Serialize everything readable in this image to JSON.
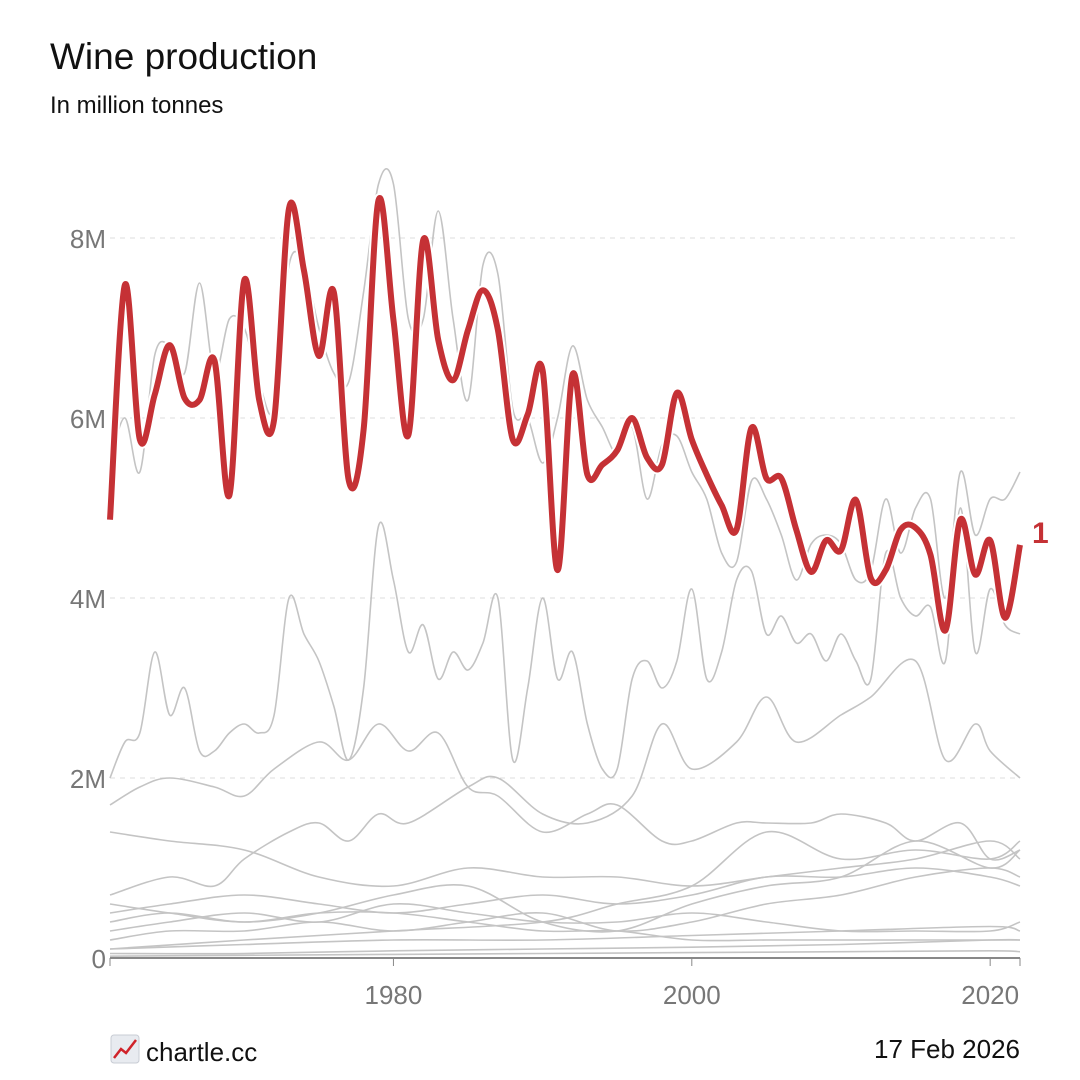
{
  "title": "Wine production",
  "subtitle": "In million tonnes",
  "footer": {
    "source": "chartle.cc",
    "date": "17 Feb 2026",
    "icon": "chart-increasing-icon"
  },
  "colors": {
    "highlight": "#c53135",
    "others": "#c4c4c4",
    "grid": "#dddddd",
    "axis": "#888888"
  },
  "chart_data": {
    "type": "line",
    "title": "Wine production",
    "subtitle": "In million tonnes",
    "xlabel": "",
    "ylabel": "",
    "xlim": [
      1961,
      2022
    ],
    "ylim": [
      0,
      8.8
    ],
    "x_ticks": [
      {
        "value": 1980,
        "label": "1980"
      },
      {
        "value": 2000,
        "label": "2000"
      },
      {
        "value": 2020,
        "label": "2020"
      }
    ],
    "y_ticks": [
      {
        "value": 0,
        "label": "0"
      },
      {
        "value": 2,
        "label": "2M"
      },
      {
        "value": 4,
        "label": "4M"
      },
      {
        "value": 6,
        "label": "6M"
      },
      {
        "value": 8,
        "label": "8M"
      }
    ],
    "grid": "horizontal dashed",
    "highlight": {
      "label": "1",
      "x": [
        1961,
        1962,
        1963,
        1964,
        1965,
        1966,
        1967,
        1968,
        1969,
        1970,
        1971,
        1972,
        1973,
        1974,
        1975,
        1976,
        1977,
        1978,
        1979,
        1980,
        1981,
        1982,
        1983,
        1984,
        1985,
        1986,
        1987,
        1988,
        1989,
        1990,
        1991,
        1992,
        1993,
        1994,
        1995,
        1996,
        1997,
        1998,
        1999,
        2000,
        2001,
        2002,
        2003,
        2004,
        2005,
        2006,
        2007,
        2008,
        2009,
        2010,
        2011,
        2012,
        2013,
        2014,
        2015,
        2016,
        2017,
        2018,
        2019,
        2020,
        2021,
        2022
      ],
      "values": [
        4.87,
        7.48,
        5.76,
        6.26,
        6.81,
        6.22,
        6.2,
        6.64,
        5.14,
        7.53,
        6.2,
        5.98,
        8.33,
        7.64,
        6.69,
        7.4,
        5.31,
        5.87,
        8.42,
        7.09,
        5.81,
        7.98,
        6.87,
        6.42,
        6.98,
        7.42,
        6.98,
        5.76,
        6.04,
        6.53,
        4.31,
        6.48,
        5.37,
        5.48,
        5.64,
        6.0,
        5.56,
        5.48,
        6.28,
        5.76,
        5.37,
        5.03,
        4.76,
        5.89,
        5.33,
        5.33,
        4.76,
        4.29,
        4.64,
        4.53,
        5.09,
        4.22,
        4.31,
        4.76,
        4.78,
        4.48,
        3.64,
        4.87,
        4.26,
        4.64,
        3.78,
        4.59
      ]
    },
    "series": [
      {
        "x": [
          1961,
          1962,
          1963,
          1964,
          1965,
          1966,
          1967,
          1968,
          1969,
          1970,
          1971,
          1972,
          1973,
          1974,
          1975,
          1976,
          1977,
          1978,
          1979,
          1980,
          1981,
          1982,
          1983,
          1984,
          1985,
          1986,
          1987,
          1988,
          1989,
          1990,
          1991,
          1992,
          1993,
          1994,
          1995,
          1996,
          1997,
          1998,
          1999,
          2000,
          2001,
          2002,
          2003,
          2004,
          2005,
          2006,
          2007,
          2008,
          2009,
          2010,
          2011,
          2012,
          2013,
          2014,
          2015,
          2016,
          2017,
          2018,
          2019,
          2020,
          2021,
          2022
        ],
        "values": [
          5.5,
          6.0,
          5.4,
          6.7,
          6.8,
          6.5,
          7.5,
          6.5,
          7.1,
          7.0,
          6.4,
          6.1,
          7.7,
          7.7,
          7.0,
          6.5,
          6.4,
          7.4,
          8.6,
          8.6,
          7.1,
          7.1,
          8.3,
          7.1,
          6.2,
          7.7,
          7.6,
          6.1,
          6.0,
          5.5,
          6.0,
          6.8,
          6.2,
          5.9,
          5.6,
          5.9,
          5.1,
          5.7,
          5.8,
          5.4,
          5.1,
          4.5,
          4.4,
          5.3,
          5.1,
          4.7,
          4.2,
          4.6,
          4.7,
          4.6,
          4.2,
          4.3,
          5.1,
          4.5,
          5.0,
          5.1,
          4.0,
          5.4,
          4.7,
          5.1,
          5.1,
          5.4
        ]
      },
      {
        "x": [
          1961,
          1962,
          1963,
          1964,
          1965,
          1966,
          1967,
          1968,
          1969,
          1970,
          1971,
          1972,
          1973,
          1974,
          1975,
          1976,
          1977,
          1978,
          1979,
          1980,
          1981,
          1982,
          1983,
          1984,
          1985,
          1986,
          1987,
          1988,
          1989,
          1990,
          1991,
          1992,
          1993,
          1994,
          1995,
          1996,
          1997,
          1998,
          1999,
          2000,
          2001,
          2002,
          2003,
          2004,
          2005,
          2006,
          2007,
          2008,
          2009,
          2010,
          2011,
          2012,
          2013,
          2014,
          2015,
          2016,
          2017,
          2018,
          2019,
          2020,
          2021,
          2022
        ],
        "values": [
          2.0,
          2.4,
          2.5,
          3.4,
          2.7,
          3.0,
          2.3,
          2.3,
          2.5,
          2.6,
          2.5,
          2.7,
          4.0,
          3.6,
          3.3,
          2.8,
          2.2,
          3.0,
          4.8,
          4.2,
          3.4,
          3.7,
          3.1,
          3.4,
          3.2,
          3.5,
          4.0,
          2.2,
          3.0,
          4.0,
          3.1,
          3.4,
          2.6,
          2.1,
          2.1,
          3.1,
          3.3,
          3.0,
          3.3,
          4.1,
          3.1,
          3.4,
          4.2,
          4.3,
          3.6,
          3.8,
          3.5,
          3.6,
          3.3,
          3.6,
          3.3,
          3.1,
          4.5,
          4.0,
          3.8,
          3.9,
          3.3,
          5.0,
          3.4,
          4.1,
          3.7,
          3.6
        ]
      },
      {
        "x": [
          1961,
          1965,
          1968,
          1970,
          1973,
          1975,
          1977,
          1979,
          1981,
          1985,
          1987,
          1990,
          1993,
          1996,
          1998,
          2000,
          2003,
          2005,
          2007,
          2010,
          2012,
          2015,
          2017,
          2019,
          2020,
          2022
        ],
        "values": [
          0.7,
          0.9,
          0.8,
          1.1,
          1.4,
          1.5,
          1.3,
          1.6,
          1.5,
          1.9,
          2.0,
          1.6,
          1.5,
          1.8,
          2.6,
          2.1,
          2.4,
          2.9,
          2.4,
          2.7,
          2.9,
          3.3,
          2.2,
          2.6,
          2.3,
          2.0
        ]
      },
      {
        "x": [
          1961,
          1963,
          1965,
          1968,
          1970,
          1972,
          1975,
          1977,
          1979,
          1981,
          1983,
          1985,
          1987,
          1990,
          1993,
          1995,
          1998,
          2000,
          2003,
          2005,
          2008,
          2010,
          2013,
          2015,
          2018,
          2020,
          2022
        ],
        "values": [
          1.7,
          1.9,
          2.0,
          1.9,
          1.8,
          2.1,
          2.4,
          2.2,
          2.6,
          2.3,
          2.5,
          1.9,
          1.8,
          1.4,
          1.6,
          1.7,
          1.3,
          1.3,
          1.5,
          1.5,
          1.5,
          1.6,
          1.5,
          1.3,
          1.5,
          1.1,
          1.2
        ]
      },
      {
        "x": [
          1961,
          1970,
          1980,
          1990,
          1995,
          2000,
          2005,
          2010,
          2015,
          2020,
          2022
        ],
        "values": [
          0.1,
          0.2,
          0.3,
          0.4,
          0.6,
          0.8,
          1.4,
          1.1,
          1.2,
          1.1,
          1.3
        ]
      },
      {
        "x": [
          1961,
          1965,
          1970,
          1975,
          1980,
          1985,
          1990,
          1995,
          2000,
          2005,
          2010,
          2015,
          2020,
          2022
        ],
        "values": [
          1.4,
          1.3,
          1.2,
          0.9,
          0.8,
          1.0,
          0.9,
          0.9,
          0.8,
          0.9,
          1.0,
          1.1,
          1.3,
          1.1
        ]
      },
      {
        "x": [
          1961,
          1965,
          1970,
          1975,
          1980,
          1985,
          1990,
          1995,
          2000,
          2005,
          2010,
          2015,
          2020,
          2022
        ],
        "values": [
          0.4,
          0.5,
          0.4,
          0.5,
          0.7,
          0.8,
          0.4,
          0.3,
          0.6,
          0.8,
          0.9,
          1.3,
          1.0,
          1.2
        ]
      },
      {
        "x": [
          1961,
          1965,
          1970,
          1975,
          1980,
          1985,
          1990,
          1995,
          2000,
          2005,
          2010,
          2015,
          2020,
          2022
        ],
        "values": [
          0.5,
          0.6,
          0.7,
          0.6,
          0.5,
          0.6,
          0.7,
          0.6,
          0.7,
          0.9,
          0.9,
          1.0,
          0.9,
          0.8
        ]
      },
      {
        "x": [
          1961,
          1965,
          1970,
          1975,
          1980,
          1985,
          1990,
          1995,
          2000,
          2005,
          2010,
          2015,
          2020,
          2022
        ],
        "values": [
          0.3,
          0.4,
          0.5,
          0.4,
          0.6,
          0.5,
          0.4,
          0.4,
          0.5,
          0.4,
          0.3,
          0.3,
          0.3,
          0.4
        ]
      },
      {
        "x": [
          1961,
          1965,
          1970,
          1975,
          1980,
          1985,
          1990,
          1995,
          2000,
          2005,
          2010,
          2015,
          2020,
          2022
        ],
        "values": [
          0.2,
          0.3,
          0.3,
          0.4,
          0.3,
          0.4,
          0.5,
          0.3,
          0.4,
          0.6,
          0.7,
          0.9,
          1.0,
          0.9
        ]
      },
      {
        "x": [
          1961,
          1965,
          1970,
          1975,
          1980,
          1985,
          1990,
          1995,
          2000,
          2005,
          2010,
          2015,
          2020,
          2022
        ],
        "values": [
          0.6,
          0.5,
          0.4,
          0.5,
          0.5,
          0.4,
          0.3,
          0.3,
          0.2,
          0.2,
          0.2,
          0.2,
          0.2,
          0.2
        ]
      },
      {
        "x": [
          1961,
          1970,
          1980,
          1990,
          2000,
          2010,
          2020,
          2022
        ],
        "values": [
          0.1,
          0.15,
          0.2,
          0.2,
          0.25,
          0.3,
          0.35,
          0.3
        ]
      },
      {
        "x": [
          1961,
          1970,
          1980,
          1990,
          2000,
          2010,
          2020,
          2022
        ],
        "values": [
          0.05,
          0.05,
          0.08,
          0.1,
          0.12,
          0.15,
          0.2,
          0.2
        ]
      },
      {
        "x": [
          1961,
          1970,
          1980,
          1990,
          2000,
          2010,
          2020,
          2022
        ],
        "values": [
          0.02,
          0.03,
          0.04,
          0.05,
          0.06,
          0.07,
          0.08,
          0.07
        ]
      }
    ]
  }
}
